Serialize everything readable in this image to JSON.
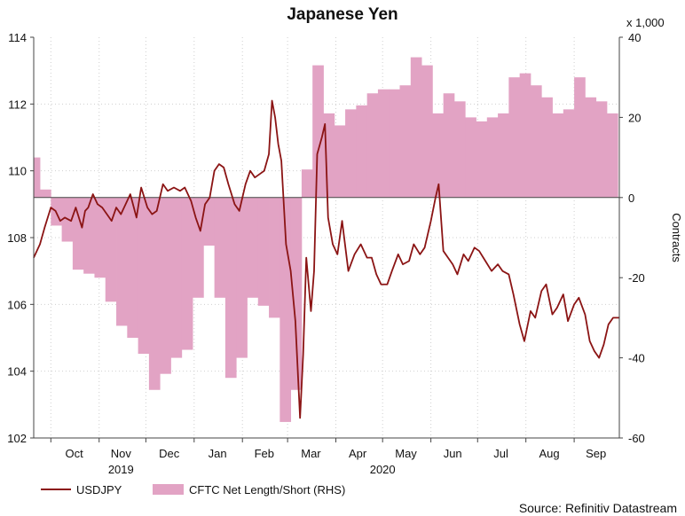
{
  "chart_data": {
    "type": "area+line",
    "title": "Japanese Yen",
    "source": "Source: Refinitiv Datastream",
    "left_axis": {
      "ylim": [
        102,
        114
      ],
      "ticks": [
        "102",
        "104",
        "106",
        "108",
        "110",
        "112",
        "114"
      ]
    },
    "right_axis": {
      "label": "Contracts",
      "multiplier": "x 1,000",
      "ylim": [
        -60,
        40
      ],
      "ticks": [
        "-60",
        "-40",
        "-20",
        "0",
        "20",
        "40"
      ]
    },
    "x_axis": {
      "start": "2019-09-20",
      "end": "2020-09-30",
      "months": [
        {
          "label": "Oct",
          "mid": "2019-10-16"
        },
        {
          "label": "Nov",
          "mid": "2019-11-15"
        },
        {
          "label": "Dec",
          "mid": "2019-12-16"
        },
        {
          "label": "Jan",
          "mid": "2020-01-16"
        },
        {
          "label": "Feb",
          "mid": "2020-02-15"
        },
        {
          "label": "Mar",
          "mid": "2020-03-16"
        },
        {
          "label": "Apr",
          "mid": "2020-04-15"
        },
        {
          "label": "May",
          "mid": "2020-05-16"
        },
        {
          "label": "Jun",
          "mid": "2020-06-15"
        },
        {
          "label": "Jul",
          "mid": "2020-07-16"
        },
        {
          "label": "Aug",
          "mid": "2020-08-16"
        },
        {
          "label": "Sep",
          "mid": "2020-09-15"
        }
      ],
      "month_boundaries": [
        "2019-10-01",
        "2019-11-01",
        "2019-12-01",
        "2020-01-01",
        "2020-02-01",
        "2020-03-01",
        "2020-04-01",
        "2020-05-01",
        "2020-06-01",
        "2020-07-01",
        "2020-08-01",
        "2020-09-01"
      ],
      "years": [
        {
          "label": "2019",
          "at": "2019-11-15"
        },
        {
          "label": "2020",
          "at": "2020-05-01"
        }
      ]
    },
    "legend": [
      "USDJPY",
      "CFTC Net Length/Short (RHS)"
    ],
    "series": [
      {
        "name": "CFTC Net Length/Short (RHS)",
        "color": "#e2a3c4",
        "axis": "right",
        "points": [
          [
            "2019-09-20",
            10
          ],
          [
            "2019-09-24",
            2
          ],
          [
            "2019-10-01",
            -7
          ],
          [
            "2019-10-08",
            -11
          ],
          [
            "2019-10-15",
            -18
          ],
          [
            "2019-10-22",
            -19
          ],
          [
            "2019-10-29",
            -20
          ],
          [
            "2019-11-05",
            -26
          ],
          [
            "2019-11-12",
            -32
          ],
          [
            "2019-11-19",
            -35
          ],
          [
            "2019-11-26",
            -39
          ],
          [
            "2019-12-03",
            -48
          ],
          [
            "2019-12-10",
            -44
          ],
          [
            "2019-12-17",
            -40
          ],
          [
            "2019-12-24",
            -38
          ],
          [
            "2019-12-31",
            -25
          ],
          [
            "2020-01-07",
            -12
          ],
          [
            "2020-01-14",
            -25
          ],
          [
            "2020-01-21",
            -45
          ],
          [
            "2020-01-28",
            -40
          ],
          [
            "2020-02-04",
            -25
          ],
          [
            "2020-02-11",
            -27
          ],
          [
            "2020-02-18",
            -30
          ],
          [
            "2020-02-25",
            -56
          ],
          [
            "2020-03-03",
            -48
          ],
          [
            "2020-03-10",
            7
          ],
          [
            "2020-03-17",
            33
          ],
          [
            "2020-03-24",
            21
          ],
          [
            "2020-03-31",
            18
          ],
          [
            "2020-04-07",
            22
          ],
          [
            "2020-04-14",
            23
          ],
          [
            "2020-04-21",
            26
          ],
          [
            "2020-04-28",
            27
          ],
          [
            "2020-05-05",
            27
          ],
          [
            "2020-05-12",
            28
          ],
          [
            "2020-05-19",
            35
          ],
          [
            "2020-05-26",
            33
          ],
          [
            "2020-06-02",
            21
          ],
          [
            "2020-06-09",
            26
          ],
          [
            "2020-06-16",
            24
          ],
          [
            "2020-06-23",
            20
          ],
          [
            "2020-06-30",
            19
          ],
          [
            "2020-07-07",
            20
          ],
          [
            "2020-07-14",
            21
          ],
          [
            "2020-07-21",
            30
          ],
          [
            "2020-07-28",
            31
          ],
          [
            "2020-08-04",
            28
          ],
          [
            "2020-08-11",
            25
          ],
          [
            "2020-08-18",
            21
          ],
          [
            "2020-08-25",
            22
          ],
          [
            "2020-09-01",
            30
          ],
          [
            "2020-09-08",
            25
          ],
          [
            "2020-09-15",
            24
          ],
          [
            "2020-09-22",
            21
          ]
        ]
      },
      {
        "name": "USDJPY",
        "color": "#8b1414",
        "axis": "left",
        "points": [
          [
            "2019-09-20",
            107.4
          ],
          [
            "2019-09-24",
            107.8
          ],
          [
            "2019-09-27",
            108.3
          ],
          [
            "2019-10-01",
            108.9
          ],
          [
            "2019-10-04",
            108.8
          ],
          [
            "2019-10-07",
            108.5
          ],
          [
            "2019-10-10",
            108.6
          ],
          [
            "2019-10-14",
            108.5
          ],
          [
            "2019-10-17",
            108.9
          ],
          [
            "2019-10-21",
            108.3
          ],
          [
            "2019-10-23",
            108.8
          ],
          [
            "2019-10-25",
            108.9
          ],
          [
            "2019-10-28",
            109.3
          ],
          [
            "2019-10-31",
            109.0
          ],
          [
            "2019-11-03",
            108.9
          ],
          [
            "2019-11-06",
            108.7
          ],
          [
            "2019-11-09",
            108.5
          ],
          [
            "2019-11-12",
            108.9
          ],
          [
            "2019-11-15",
            108.7
          ],
          [
            "2019-11-18",
            109.0
          ],
          [
            "2019-11-21",
            109.3
          ],
          [
            "2019-11-25",
            108.6
          ],
          [
            "2019-11-28",
            109.5
          ],
          [
            "2019-12-02",
            108.9
          ],
          [
            "2019-12-05",
            108.7
          ],
          [
            "2019-12-08",
            108.8
          ],
          [
            "2019-12-12",
            109.6
          ],
          [
            "2019-12-15",
            109.4
          ],
          [
            "2019-12-19",
            109.5
          ],
          [
            "2019-12-23",
            109.4
          ],
          [
            "2019-12-26",
            109.5
          ],
          [
            "2019-12-30",
            109.1
          ],
          [
            "2020-01-02",
            108.6
          ],
          [
            "2020-01-05",
            108.2
          ],
          [
            "2020-01-08",
            109.0
          ],
          [
            "2020-01-11",
            109.2
          ],
          [
            "2020-01-14",
            110.0
          ],
          [
            "2020-01-17",
            110.2
          ],
          [
            "2020-01-20",
            110.1
          ],
          [
            "2020-01-23",
            109.6
          ],
          [
            "2020-01-27",
            109.0
          ],
          [
            "2020-01-30",
            108.8
          ],
          [
            "2020-02-03",
            109.6
          ],
          [
            "2020-02-06",
            110.0
          ],
          [
            "2020-02-09",
            109.8
          ],
          [
            "2020-02-12",
            109.9
          ],
          [
            "2020-02-15",
            110.0
          ],
          [
            "2020-02-18",
            110.5
          ],
          [
            "2020-02-20",
            112.1
          ],
          [
            "2020-02-22",
            111.6
          ],
          [
            "2020-02-24",
            110.8
          ],
          [
            "2020-02-26",
            110.3
          ],
          [
            "2020-02-29",
            107.8
          ],
          [
            "2020-03-03",
            107.0
          ],
          [
            "2020-03-06",
            105.5
          ],
          [
            "2020-03-09",
            102.6
          ],
          [
            "2020-03-11",
            104.5
          ],
          [
            "2020-03-13",
            107.4
          ],
          [
            "2020-03-16",
            105.8
          ],
          [
            "2020-03-18",
            107.0
          ],
          [
            "2020-03-20",
            110.5
          ],
          [
            "2020-03-23",
            111.0
          ],
          [
            "2020-03-25",
            111.4
          ],
          [
            "2020-03-27",
            108.6
          ],
          [
            "2020-03-30",
            107.8
          ],
          [
            "2020-04-02",
            107.5
          ],
          [
            "2020-04-05",
            108.5
          ],
          [
            "2020-04-09",
            107.0
          ],
          [
            "2020-04-13",
            107.5
          ],
          [
            "2020-04-17",
            107.8
          ],
          [
            "2020-04-21",
            107.4
          ],
          [
            "2020-04-24",
            107.4
          ],
          [
            "2020-04-27",
            106.9
          ],
          [
            "2020-04-30",
            106.6
          ],
          [
            "2020-05-04",
            106.6
          ],
          [
            "2020-05-07",
            107.0
          ],
          [
            "2020-05-11",
            107.5
          ],
          [
            "2020-05-14",
            107.2
          ],
          [
            "2020-05-18",
            107.3
          ],
          [
            "2020-05-21",
            107.8
          ],
          [
            "2020-05-25",
            107.5
          ],
          [
            "2020-05-28",
            107.7
          ],
          [
            "2020-06-01",
            108.5
          ],
          [
            "2020-06-04",
            109.2
          ],
          [
            "2020-06-06",
            109.6
          ],
          [
            "2020-06-09",
            107.6
          ],
          [
            "2020-06-12",
            107.4
          ],
          [
            "2020-06-15",
            107.2
          ],
          [
            "2020-06-18",
            106.9
          ],
          [
            "2020-06-22",
            107.5
          ],
          [
            "2020-06-25",
            107.3
          ],
          [
            "2020-06-29",
            107.7
          ],
          [
            "2020-07-02",
            107.6
          ],
          [
            "2020-07-06",
            107.3
          ],
          [
            "2020-07-10",
            107.0
          ],
          [
            "2020-07-14",
            107.2
          ],
          [
            "2020-07-17",
            107.0
          ],
          [
            "2020-07-21",
            106.9
          ],
          [
            "2020-07-24",
            106.3
          ],
          [
            "2020-07-28",
            105.4
          ],
          [
            "2020-07-31",
            104.9
          ],
          [
            "2020-08-04",
            105.8
          ],
          [
            "2020-08-07",
            105.6
          ],
          [
            "2020-08-11",
            106.4
          ],
          [
            "2020-08-14",
            106.6
          ],
          [
            "2020-08-18",
            105.7
          ],
          [
            "2020-08-21",
            105.9
          ],
          [
            "2020-08-25",
            106.3
          ],
          [
            "2020-08-28",
            105.5
          ],
          [
            "2020-09-01",
            106.0
          ],
          [
            "2020-09-04",
            106.2
          ],
          [
            "2020-09-08",
            105.7
          ],
          [
            "2020-09-11",
            104.9
          ],
          [
            "2020-09-14",
            104.6
          ],
          [
            "2020-09-17",
            104.4
          ],
          [
            "2020-09-20",
            104.8
          ],
          [
            "2020-09-23",
            105.4
          ],
          [
            "2020-09-26",
            105.6
          ],
          [
            "2020-09-30",
            105.6
          ]
        ]
      }
    ]
  }
}
